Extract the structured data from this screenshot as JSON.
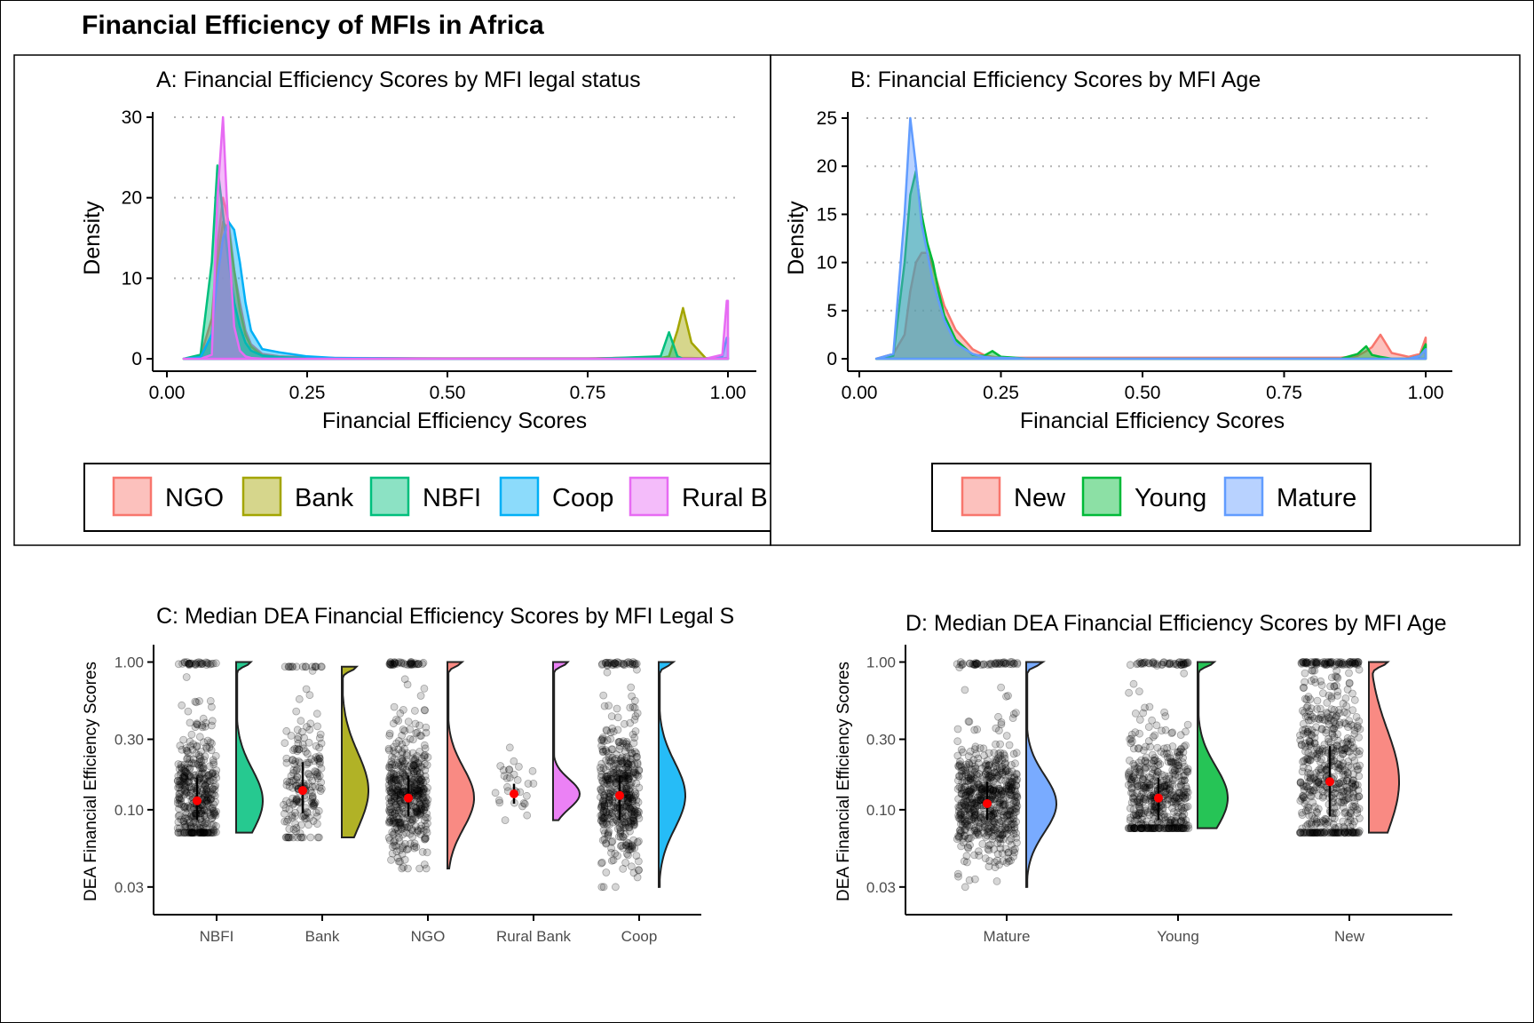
{
  "figure": {
    "title": "Financial Efficiency of MFIs in Africa"
  },
  "colors": {
    "NGO": "#F8766D",
    "Bank": "#A3A500",
    "NBFI": "#00BF7D",
    "Coop": "#00B0F6",
    "Rural Bank": "#E76BF3",
    "New": "#F8766D",
    "Young": "#00BA38",
    "Mature": "#619CFF",
    "median_point": "#FF0000",
    "jitter_point": "#000000"
  },
  "chart_data": [
    {
      "id": "A",
      "type": "area",
      "title": "A: Financial Efficiency Scores by MFI legal status",
      "xlabel": "Financial Efficiency Scores",
      "ylabel": "Density",
      "xlim": [
        0,
        1
      ],
      "ylim": [
        0,
        30
      ],
      "xticks": [
        0,
        0.25,
        0.5,
        0.75,
        1
      ],
      "xtick_labels": [
        "0.00",
        "0.25",
        "0.50",
        "0.75",
        "1.00"
      ],
      "yticks": [
        0,
        10,
        20,
        30
      ],
      "ytick_labels": [
        "0",
        "10",
        "20",
        "30"
      ],
      "grid": "horizontal-dotted",
      "legend": {
        "position": "bottom",
        "labels": [
          "NGO",
          "Bank",
          "NBFI",
          "Coop",
          "Rural B"
        ]
      },
      "x": [
        0.03,
        0.06,
        0.08,
        0.09,
        0.1,
        0.11,
        0.12,
        0.13,
        0.14,
        0.15,
        0.17,
        0.2,
        0.25,
        0.3,
        0.5,
        0.75,
        0.8,
        0.88,
        0.895,
        0.91,
        0.92,
        0.935,
        0.96,
        0.99,
        0.998,
        1.0
      ],
      "series": [
        {
          "name": "NGO",
          "values": [
            0,
            0.3,
            5,
            14,
            20,
            17,
            11,
            7,
            3.5,
            1.8,
            0.6,
            0.3,
            0.2,
            0.1,
            0.05,
            0.05,
            0.1,
            0.1,
            0.1,
            0.1,
            0.1,
            0.1,
            0.05,
            0.05,
            0.1,
            0.1
          ]
        },
        {
          "name": "Bank",
          "values": [
            0,
            0.1,
            3,
            12,
            17,
            16,
            11,
            6,
            3,
            1.5,
            0.4,
            0.2,
            0.1,
            0,
            0,
            0,
            0.1,
            0.1,
            0.3,
            3.5,
            6.3,
            2,
            0.1,
            0,
            0,
            0
          ]
        },
        {
          "name": "NBFI",
          "values": [
            0,
            0.5,
            12,
            24,
            18,
            12,
            7,
            4,
            2,
            1,
            0.4,
            0.2,
            0.1,
            0,
            0,
            0,
            0.1,
            0.3,
            3.3,
            0.3,
            0,
            0,
            0,
            0,
            0,
            0
          ]
        },
        {
          "name": "Coop",
          "values": [
            0,
            0.2,
            3,
            10,
            15,
            17,
            16,
            12,
            7,
            3.5,
            1.2,
            0.8,
            0.3,
            0.1,
            0,
            0,
            0,
            0,
            0,
            0,
            0,
            0,
            0,
            0.3,
            2.6,
            2.6
          ]
        },
        {
          "name": "Rural Bank",
          "values": [
            0,
            0,
            0.5,
            20,
            30,
            15,
            4,
            1,
            0.3,
            0.1,
            0,
            0,
            0,
            0,
            0,
            0,
            0,
            0,
            0,
            0,
            0,
            0,
            0,
            0.5,
            7.2,
            7.2
          ]
        }
      ]
    },
    {
      "id": "B",
      "type": "area",
      "title": "B: Financial Efficiency Scores by MFI Age",
      "xlabel": "Financial Efficiency Scores",
      "ylabel": "Density",
      "xlim": [
        0,
        1
      ],
      "ylim": [
        0,
        25
      ],
      "xticks": [
        0,
        0.25,
        0.5,
        0.75,
        1
      ],
      "xtick_labels": [
        "0.00",
        "0.25",
        "0.50",
        "0.75",
        "1.00"
      ],
      "yticks": [
        0,
        5,
        10,
        15,
        20,
        25
      ],
      "ytick_labels": [
        "0",
        "5",
        "10",
        "15",
        "20",
        "25"
      ],
      "grid": "horizontal-dotted",
      "legend": {
        "position": "bottom",
        "labels": [
          "New",
          "Young",
          "Mature"
        ]
      },
      "x": [
        0.03,
        0.06,
        0.08,
        0.09,
        0.1,
        0.11,
        0.12,
        0.13,
        0.14,
        0.15,
        0.17,
        0.2,
        0.22,
        0.235,
        0.25,
        0.3,
        0.5,
        0.75,
        0.85,
        0.88,
        0.895,
        0.905,
        0.92,
        0.94,
        0.97,
        0.99,
        1.0
      ],
      "series": [
        {
          "name": "New",
          "values": [
            0,
            0.5,
            2.5,
            7,
            10,
            11,
            11,
            9.5,
            7.5,
            5.5,
            3,
            1,
            0.4,
            0.2,
            0.1,
            0.1,
            0.1,
            0.1,
            0.1,
            0.3,
            0.8,
            1.2,
            2.5,
            0.6,
            0.2,
            0.5,
            2.2
          ]
        },
        {
          "name": "Young",
          "values": [
            0,
            0.3,
            10,
            17,
            19.5,
            15,
            12,
            10,
            7,
            4.5,
            2,
            0.4,
            0.3,
            0.8,
            0.2,
            0,
            0,
            0,
            0,
            0.5,
            1.3,
            0.4,
            0.2,
            0,
            0,
            0.3,
            1.5
          ]
        },
        {
          "name": "Mature",
          "values": [
            0,
            0.5,
            15,
            25,
            20,
            14,
            11,
            8,
            6,
            4,
            1.6,
            0.5,
            0.2,
            0.1,
            0.1,
            0,
            0,
            0,
            0,
            0,
            0,
            0,
            0,
            0,
            0,
            0.3,
            1
          ]
        }
      ]
    },
    {
      "id": "C",
      "type": "scatter",
      "subtype": "raincloud",
      "title": "C: Median DEA Financial Efficiency Scores by MFI Legal S",
      "xlabel": "",
      "ylabel": "DEA Financial Efficiency Scores",
      "y_scale": "log10",
      "ylim": [
        0.025,
        1.05
      ],
      "yticks": [
        0.03,
        0.1,
        0.3,
        1
      ],
      "ytick_labels": [
        "0.03",
        "0.10",
        "0.30",
        "1.00"
      ],
      "categories": [
        "NBFI",
        "Bank",
        "NGO",
        "Rural Bank",
        "Coop"
      ],
      "medians": [
        0.115,
        0.135,
        0.12,
        0.128,
        0.125
      ],
      "iqr_lo": [
        0.085,
        0.095,
        0.09,
        0.11,
        0.085
      ],
      "iqr_hi": [
        0.165,
        0.21,
        0.17,
        0.15,
        0.17
      ],
      "range_lo": [
        0.07,
        0.065,
        0.04,
        0.085,
        0.03
      ],
      "range_hi": [
        1,
        0.93,
        1,
        1,
        1
      ],
      "point_counts": [
        420,
        200,
        480,
        30,
        480
      ],
      "category_colors": [
        "#00BF7D",
        "#A3A500",
        "#F8766D",
        "#E76BF3",
        "#00B0F6"
      ]
    },
    {
      "id": "D",
      "type": "scatter",
      "subtype": "raincloud",
      "title": "D: Median DEA Financial Efficiency Scores by MFI Age",
      "xlabel": "",
      "ylabel": "DEA Financial Efficiency Scores",
      "y_scale": "log10",
      "ylim": [
        0.025,
        1.05
      ],
      "yticks": [
        0.03,
        0.1,
        0.3,
        1
      ],
      "ytick_labels": [
        "0.03",
        "0.10",
        "0.30",
        "1.00"
      ],
      "categories": [
        "Mature",
        "Young",
        "New"
      ],
      "medians": [
        0.11,
        0.12,
        0.155
      ],
      "iqr_lo": [
        0.085,
        0.085,
        0.09
      ],
      "iqr_hi": [
        0.155,
        0.165,
        0.27
      ],
      "range_lo": [
        0.03,
        0.075,
        0.07
      ],
      "range_hi": [
        1,
        1,
        1
      ],
      "point_counts": [
        650,
        520,
        600
      ],
      "category_colors": [
        "#619CFF",
        "#00BA38",
        "#F8766D"
      ]
    }
  ]
}
